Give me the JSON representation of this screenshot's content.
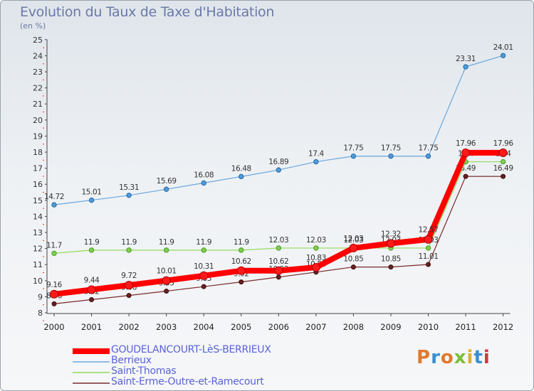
{
  "header": {
    "title": "Evolution du Taux de Taxe d'Habitation",
    "subtitle": "(en %)"
  },
  "logo": {
    "text": "Proxiti",
    "colors": [
      "#e07a2e",
      "#3a8fd1",
      "#e07a2e",
      "#7bbf3a",
      "#e0b02e",
      "#3a8fd1",
      "#d13a3a"
    ]
  },
  "chart_data": {
    "type": "line",
    "title": "Evolution du Taux de Taxe d'Habitation",
    "ylabel": "(en %)",
    "xlabel": "",
    "x": [
      2000,
      2001,
      2002,
      2003,
      2004,
      2005,
      2006,
      2007,
      2008,
      2009,
      2010,
      2011,
      2012
    ],
    "y_ticks": [
      8,
      9,
      10,
      11,
      12,
      13,
      14,
      15,
      16,
      17,
      18,
      19,
      20,
      21,
      22,
      23,
      24,
      25
    ],
    "ylim": [
      8,
      25
    ],
    "grid": false,
    "legend": "bottom-left",
    "series": [
      {
        "name": "GOUDELANCOURT-LèS-BERRIEUX",
        "color": "#ff0000",
        "values": [
          9.16,
          9.44,
          9.72,
          10.01,
          10.31,
          10.62,
          10.62,
          10.83,
          12.03,
          12.32,
          12.57,
          17.96,
          17.96
        ]
      },
      {
        "name": "Berrieux",
        "color": "#6aa8dd",
        "values": [
          14.72,
          15.01,
          15.31,
          15.69,
          16.08,
          16.48,
          16.89,
          17.4,
          17.75,
          17.75,
          17.75,
          23.31,
          24.01
        ]
      },
      {
        "name": "Saint-Thomas",
        "color": "#8fdc5a",
        "values": [
          11.7,
          11.9,
          11.9,
          11.9,
          11.9,
          11.9,
          12.03,
          12.03,
          12.03,
          12.03,
          12.03,
          17.4,
          17.4
        ]
      },
      {
        "name": "Saint-Erme-Outre-et-Ramecourt",
        "color": "#7a2a2a",
        "values": [
          8.56,
          8.82,
          9.08,
          9.35,
          9.63,
          9.92,
          10.22,
          10.53,
          10.85,
          10.85,
          11.01,
          16.49,
          16.49
        ]
      }
    ]
  }
}
